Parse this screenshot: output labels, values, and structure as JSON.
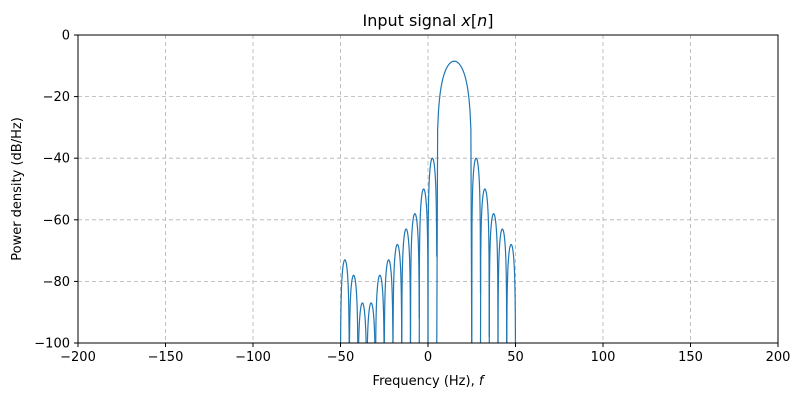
{
  "chart_data": {
    "type": "line",
    "title": "Input signal x[n]",
    "title_parts": {
      "prefix": "Input signal ",
      "var": "x",
      "open": "[",
      "index": "n",
      "close": "]"
    },
    "xlabel": "Frequency (Hz), f",
    "xlabel_parts": {
      "text": "Frequency (Hz), ",
      "var": "f"
    },
    "ylabel": "Power density (dB/Hz)",
    "xlim": [
      -200,
      200
    ],
    "ylim": [
      -100,
      0
    ],
    "xticks": [
      -200,
      -150,
      -100,
      -50,
      0,
      50,
      100,
      150,
      200
    ],
    "xtick_labels": [
      "−200",
      "−150",
      "−100",
      "−50",
      "0",
      "50",
      "100",
      "150",
      "200"
    ],
    "yticks": [
      0,
      -20,
      -40,
      -60,
      -80,
      -100
    ],
    "ytick_labels": [
      "0",
      "−20",
      "−40",
      "−60",
      "−80",
      "−100"
    ],
    "grid": true,
    "line_color": "#1f77b4",
    "grid_color": "#b0b0b0",
    "series": [
      {
        "main_lobe": {
          "x_start": 5,
          "x_peak": 15,
          "x_end": 25,
          "y_peak": -8.5
        },
        "lobes": [
          {
            "x_start": -50,
            "x_end": -45,
            "y_peak": -73
          },
          {
            "x_start": -45,
            "x_end": -40,
            "y_peak": -78
          },
          {
            "x_start": -40,
            "x_end": -35,
            "y_peak": -87
          },
          {
            "x_start": -35,
            "x_end": -30,
            "y_peak": -87
          },
          {
            "x_start": -30,
            "x_end": -25,
            "y_peak": -78
          },
          {
            "x_start": -25,
            "x_end": -20,
            "y_peak": -73
          },
          {
            "x_start": -20,
            "x_end": -15,
            "y_peak": -68
          },
          {
            "x_start": -15,
            "x_end": -10,
            "y_peak": -63
          },
          {
            "x_start": -10,
            "x_end": -5,
            "y_peak": -58,
            "end_y": -92
          },
          {
            "x_start": -5,
            "x_end": 0,
            "y_peak": -50
          },
          {
            "x_start": 0,
            "x_end": 5,
            "y_peak": -40,
            "end_y": -72
          },
          {
            "x_start": 25,
            "x_end": 30,
            "y_peak": -40,
            "end_y": -84
          },
          {
            "x_start": 30,
            "x_end": 35,
            "y_peak": -50,
            "end_y": -98
          },
          {
            "x_start": 35,
            "x_end": 40,
            "y_peak": -58
          },
          {
            "x_start": 40,
            "x_end": 45,
            "y_peak": -63
          },
          {
            "x_start": 45,
            "x_end": 50,
            "y_peak": -68
          }
        ]
      }
    ]
  }
}
